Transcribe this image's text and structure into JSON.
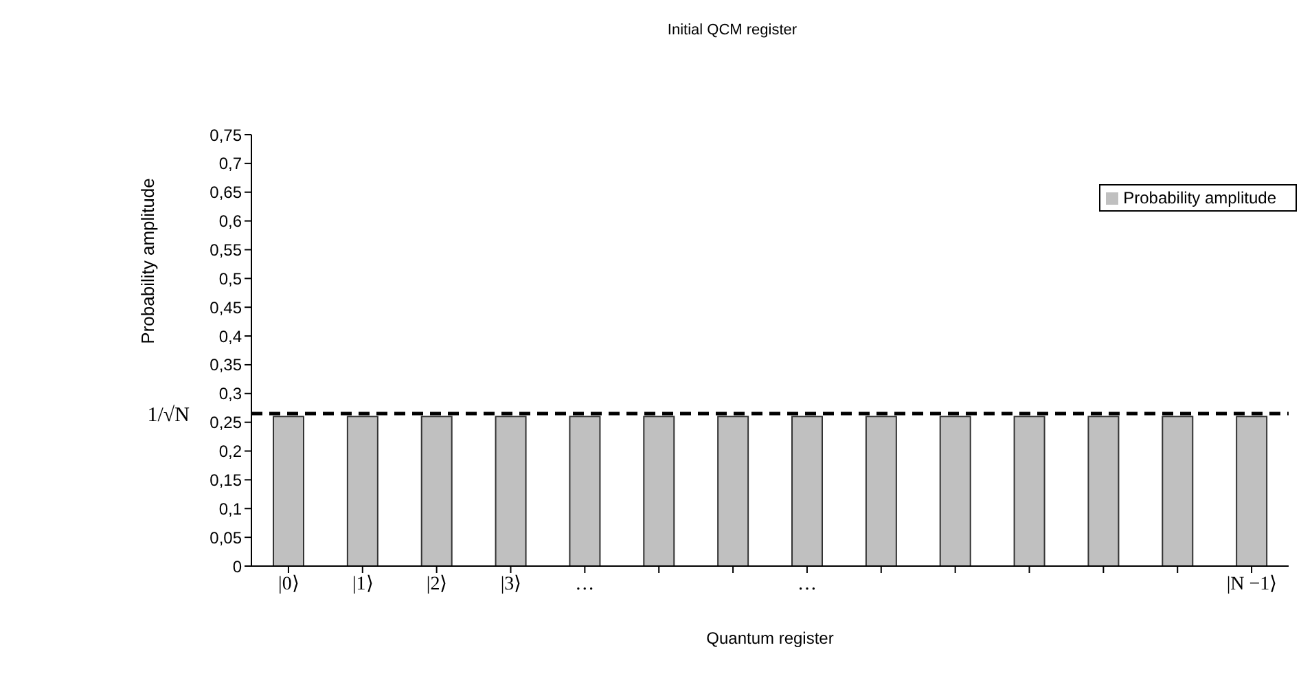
{
  "chart_data": {
    "type": "bar",
    "title": "Initial QCM register",
    "xlabel": "Quantum register",
    "ylabel": "Probability amplitude",
    "categories": [
      "|0⟩",
      "|1⟩",
      "|2⟩",
      "|3⟩",
      "…",
      null,
      null,
      "…",
      null,
      null,
      null,
      null,
      null,
      "|N −1⟩"
    ],
    "series": [
      {
        "name": "Probability amplitude",
        "color": "#c0c0c0",
        "values": [
          0.26,
          0.26,
          0.26,
          0.26,
          0.26,
          0.26,
          0.26,
          0.26,
          0.26,
          0.26,
          0.26,
          0.26,
          0.26,
          0.26
        ]
      }
    ],
    "ylim": [
      0,
      0.75
    ],
    "yticks": [
      0,
      {
        "value": 0.05,
        "label": "0,05"
      },
      {
        "value": 0.1,
        "label": "0,1"
      },
      {
        "value": 0.15,
        "label": "0,15"
      },
      {
        "value": 0.2,
        "label": "0,2"
      },
      {
        "value": 0.25,
        "label": "0,25"
      },
      {
        "value": 0.3,
        "label": "0,3"
      },
      {
        "value": 0.35,
        "label": "0,35"
      },
      {
        "value": 0.4,
        "label": "0,4"
      },
      {
        "value": 0.45,
        "label": "0,45"
      },
      {
        "value": 0.5,
        "label": "0,5"
      },
      {
        "value": 0.55,
        "label": "0,55"
      },
      {
        "value": 0.6,
        "label": "0,6"
      },
      {
        "value": 0.65,
        "label": "0,65"
      },
      {
        "value": 0.7,
        "label": "0,7"
      },
      {
        "value": 0.75,
        "label": "0,75"
      }
    ],
    "ref_lines": [
      {
        "axis": "y",
        "value": 0.265,
        "label": "1/√N",
        "color": "#000000",
        "line_style": "dashed"
      }
    ],
    "grid": false,
    "legend": "top right"
  }
}
